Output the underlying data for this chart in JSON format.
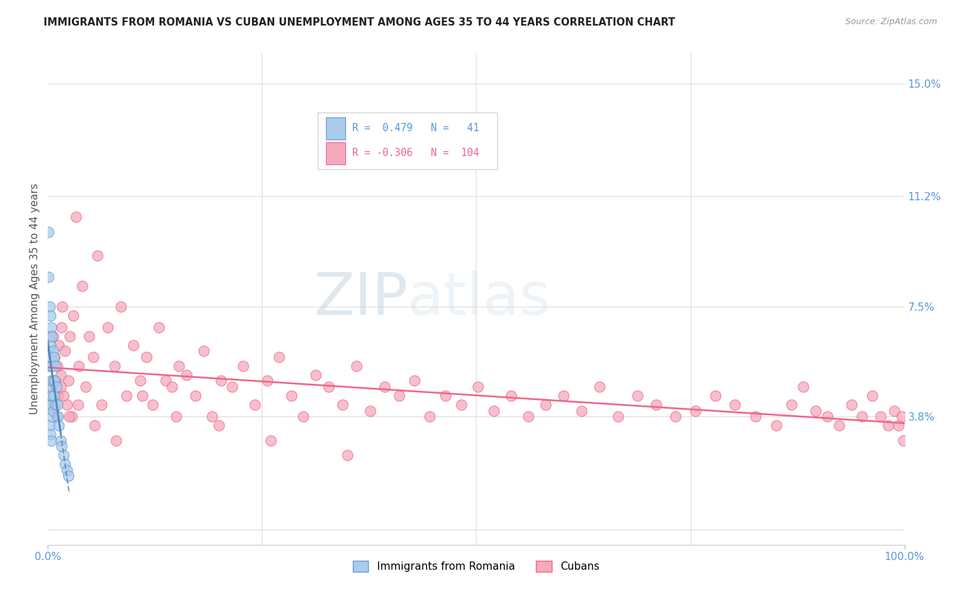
{
  "title": "IMMIGRANTS FROM ROMANIA VS CUBAN UNEMPLOYMENT AMONG AGES 35 TO 44 YEARS CORRELATION CHART",
  "source": "Source: ZipAtlas.com",
  "ylabel": "Unemployment Among Ages 35 to 44 years",
  "watermark_zip": "ZIP",
  "watermark_atlas": "atlas",
  "legend_r1": "R =  0.479   N =   41",
  "legend_r2": "R = -0.306   N =  104",
  "legend_label1": "Immigrants from Romania",
  "legend_label2": "Cubans",
  "color_romania_fill": "#aaccee",
  "color_romania_edge": "#6699cc",
  "color_cubans_fill": "#f5aabb",
  "color_cubans_edge": "#ee6688",
  "color_line_romania": "#5588bb",
  "color_line_cubans": "#ee6688",
  "color_axis_labels": "#5599dd",
  "color_grid": "#dddddd",
  "xlim": [
    0.0,
    1.0
  ],
  "ylim": [
    -0.005,
    0.16
  ],
  "right_yticks": [
    0.0,
    0.038,
    0.075,
    0.112,
    0.15
  ],
  "right_yticklabels": [
    "",
    "3.8%",
    "7.5%",
    "11.2%",
    "15.0%"
  ],
  "romania_x": [
    0.001,
    0.001,
    0.001,
    0.002,
    0.002,
    0.002,
    0.002,
    0.002,
    0.003,
    0.003,
    0.003,
    0.003,
    0.003,
    0.003,
    0.004,
    0.004,
    0.004,
    0.004,
    0.004,
    0.005,
    0.005,
    0.005,
    0.005,
    0.006,
    0.006,
    0.006,
    0.007,
    0.007,
    0.008,
    0.009,
    0.009,
    0.01,
    0.011,
    0.012,
    0.013,
    0.015,
    0.016,
    0.018,
    0.02,
    0.022,
    0.024
  ],
  "romania_y": [
    0.1,
    0.085,
    0.06,
    0.075,
    0.065,
    0.055,
    0.045,
    0.035,
    0.072,
    0.062,
    0.055,
    0.048,
    0.042,
    0.032,
    0.068,
    0.058,
    0.05,
    0.042,
    0.03,
    0.065,
    0.055,
    0.045,
    0.038,
    0.06,
    0.05,
    0.04,
    0.058,
    0.045,
    0.05,
    0.055,
    0.042,
    0.048,
    0.042,
    0.038,
    0.035,
    0.03,
    0.028,
    0.025,
    0.022,
    0.02,
    0.018
  ],
  "cubans_x": [
    0.004,
    0.005,
    0.006,
    0.007,
    0.008,
    0.009,
    0.01,
    0.011,
    0.012,
    0.013,
    0.015,
    0.016,
    0.017,
    0.018,
    0.02,
    0.022,
    0.024,
    0.026,
    0.028,
    0.03,
    0.033,
    0.036,
    0.04,
    0.044,
    0.048,
    0.053,
    0.058,
    0.063,
    0.07,
    0.078,
    0.085,
    0.092,
    0.1,
    0.108,
    0.115,
    0.122,
    0.13,
    0.138,
    0.145,
    0.153,
    0.162,
    0.172,
    0.182,
    0.192,
    0.202,
    0.215,
    0.228,
    0.242,
    0.256,
    0.27,
    0.284,
    0.298,
    0.313,
    0.328,
    0.344,
    0.36,
    0.376,
    0.393,
    0.41,
    0.428,
    0.446,
    0.464,
    0.483,
    0.502,
    0.521,
    0.541,
    0.561,
    0.581,
    0.602,
    0.623,
    0.644,
    0.666,
    0.688,
    0.71,
    0.733,
    0.756,
    0.779,
    0.802,
    0.826,
    0.85,
    0.868,
    0.882,
    0.896,
    0.91,
    0.924,
    0.938,
    0.95,
    0.962,
    0.972,
    0.981,
    0.988,
    0.993,
    0.997,
    0.999,
    0.015,
    0.025,
    0.035,
    0.055,
    0.08,
    0.11,
    0.15,
    0.2,
    0.26,
    0.35
  ],
  "cubans_y": [
    0.055,
    0.048,
    0.065,
    0.042,
    0.058,
    0.05,
    0.038,
    0.055,
    0.045,
    0.062,
    0.052,
    0.068,
    0.075,
    0.045,
    0.06,
    0.042,
    0.05,
    0.065,
    0.038,
    0.072,
    0.105,
    0.055,
    0.082,
    0.048,
    0.065,
    0.058,
    0.092,
    0.042,
    0.068,
    0.055,
    0.075,
    0.045,
    0.062,
    0.05,
    0.058,
    0.042,
    0.068,
    0.05,
    0.048,
    0.055,
    0.052,
    0.045,
    0.06,
    0.038,
    0.05,
    0.048,
    0.055,
    0.042,
    0.05,
    0.058,
    0.045,
    0.038,
    0.052,
    0.048,
    0.042,
    0.055,
    0.04,
    0.048,
    0.045,
    0.05,
    0.038,
    0.045,
    0.042,
    0.048,
    0.04,
    0.045,
    0.038,
    0.042,
    0.045,
    0.04,
    0.048,
    0.038,
    0.045,
    0.042,
    0.038,
    0.04,
    0.045,
    0.042,
    0.038,
    0.035,
    0.042,
    0.048,
    0.04,
    0.038,
    0.035,
    0.042,
    0.038,
    0.045,
    0.038,
    0.035,
    0.04,
    0.035,
    0.038,
    0.03,
    0.048,
    0.038,
    0.042,
    0.035,
    0.03,
    0.045,
    0.038,
    0.035,
    0.03,
    0.025
  ]
}
